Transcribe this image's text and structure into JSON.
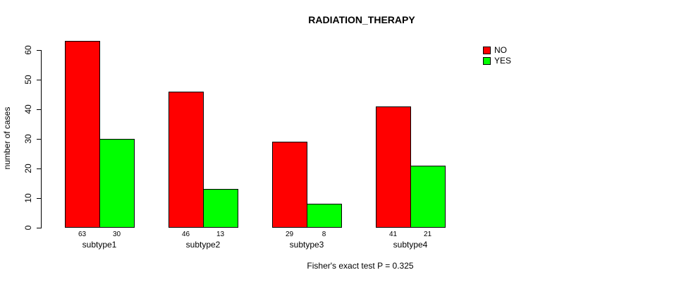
{
  "chart_data": {
    "type": "bar",
    "title": "RADIATION_THERAPY",
    "xlabel": "",
    "ylabel": "number of cases",
    "categories": [
      "subtype1",
      "subtype2",
      "subtype3",
      "subtype4"
    ],
    "series": [
      {
        "name": "NO",
        "color": "#FF0000",
        "values": [
          63,
          46,
          29,
          41
        ]
      },
      {
        "name": "YES",
        "color": "#00FF00",
        "values": [
          30,
          13,
          8,
          21
        ]
      }
    ],
    "value_labels_shown": true,
    "ylim": [
      0,
      60
    ],
    "yticks": [
      0,
      10,
      20,
      30,
      40,
      50,
      60
    ],
    "grid": false,
    "legend_position": "topright",
    "annotation": "Fisher's exact test P = 0.325"
  }
}
